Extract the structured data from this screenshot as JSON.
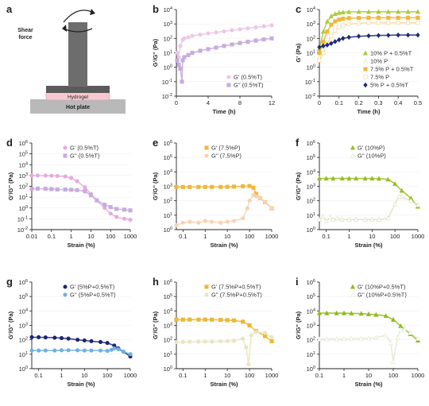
{
  "schematic": {
    "label": "a",
    "shear_force": "Shear\nforce",
    "hydrogel": "Hydrogel",
    "hot_plate": "Hot plate"
  },
  "chart_data": [
    {
      "id": "b",
      "type": "line",
      "xscale": "linear",
      "yscale": "log",
      "xlim": [
        0,
        12
      ],
      "ylim": [
        -2,
        4
      ],
      "xticks": [
        0,
        4,
        8,
        12
      ],
      "yticks": [
        -2,
        -1,
        0,
        1,
        2,
        3,
        4
      ],
      "xlabel": "Time (h)",
      "ylabel": "G'/G'' (Pa)",
      "legend": "bottom-right",
      "series": [
        {
          "name": "G' (0.5%T)",
          "color": "#eec6e6",
          "marker": "circle",
          "x": [
            0.1,
            0.3,
            0.5,
            0.8,
            1,
            1.5,
            2,
            3,
            4,
            5,
            6,
            7,
            8,
            9,
            10,
            11,
            12
          ],
          "y": [
            10,
            5,
            30,
            80,
            100,
            120,
            150,
            180,
            220,
            260,
            310,
            370,
            430,
            500,
            580,
            680,
            800
          ]
        },
        {
          "name": "G'' (0.5%T)",
          "color": "#c6acdd",
          "marker": "square",
          "x": [
            0.1,
            0.3,
            0.5,
            0.7,
            0.8,
            1,
            1.5,
            2,
            3,
            4,
            5,
            6,
            7,
            8,
            9,
            10,
            11,
            12
          ],
          "y": [
            3,
            1.5,
            0.8,
            0.1,
            3,
            5,
            7,
            10,
            14,
            18,
            23,
            30,
            38,
            48,
            58,
            70,
            85,
            100
          ]
        }
      ]
    },
    {
      "id": "c",
      "type": "scatter",
      "xscale": "linear",
      "yscale": "log",
      "xlim": [
        0,
        0.5
      ],
      "ylim": [
        -2,
        4
      ],
      "xticks": [
        0,
        0.1,
        0.2,
        0.3,
        0.4,
        0.5
      ],
      "yticks": [
        -2,
        -1,
        0,
        1,
        2,
        3,
        4
      ],
      "xlabel": "Time (h)",
      "ylabel": "G' (Pa)",
      "legend": "bottom-right",
      "series": [
        {
          "name": "10% P + 0.5%T",
          "color": "#a8cc3a",
          "marker": "triangle",
          "x": [
            0,
            0.02,
            0.04,
            0.06,
            0.08,
            0.1,
            0.12,
            0.15,
            0.2,
            0.25,
            0.3,
            0.35,
            0.4,
            0.45,
            0.5
          ],
          "y": [
            20,
            300,
            1500,
            3500,
            5000,
            6000,
            6500,
            6800,
            7000,
            7000,
            7000,
            7000,
            7000,
            7000,
            7000
          ]
        },
        {
          "name": "10% P",
          "color": "#dfe9b8",
          "marker": "triangle-open",
          "x": [
            0,
            0.02,
            0.04,
            0.06,
            0.08,
            0.1,
            0.12,
            0.15,
            0.2,
            0.25,
            0.3,
            0.35,
            0.4,
            0.45,
            0.5
          ],
          "y": [
            5,
            50,
            300,
            900,
            1500,
            2000,
            2300,
            2500,
            2600,
            2700,
            2700,
            2700,
            2700,
            2700,
            2700
          ]
        },
        {
          "name": "7.5% P + 0.5%T",
          "color": "#f2b63c",
          "marker": "square",
          "x": [
            0,
            0.02,
            0.04,
            0.06,
            0.08,
            0.1,
            0.12,
            0.15,
            0.2,
            0.25,
            0.3,
            0.35,
            0.4,
            0.45,
            0.5
          ],
          "y": [
            10,
            60,
            300,
            900,
            1500,
            2000,
            2300,
            2500,
            2600,
            2700,
            2700,
            2700,
            2700,
            2700,
            2700
          ]
        },
        {
          "name": "7.5% P",
          "color": "#f6d99a",
          "marker": "square-open",
          "x": [
            0,
            0.02,
            0.04,
            0.06,
            0.08,
            0.1,
            0.12,
            0.15,
            0.2,
            0.25,
            0.3,
            0.35,
            0.4,
            0.45,
            0.5
          ],
          "y": [
            3,
            10,
            40,
            150,
            350,
            600,
            800,
            1000,
            1100,
            1200,
            1200,
            1200,
            1200,
            1200,
            1200
          ]
        },
        {
          "name": "5% P + 0.5%T",
          "color": "#1e2a78",
          "marker": "diamond",
          "x": [
            0,
            0.02,
            0.04,
            0.06,
            0.08,
            0.1,
            0.12,
            0.15,
            0.2,
            0.25,
            0.3,
            0.35,
            0.4,
            0.45,
            0.5
          ],
          "y": [
            25,
            30,
            35,
            45,
            60,
            80,
            100,
            120,
            140,
            150,
            160,
            165,
            170,
            170,
            170
          ]
        }
      ]
    },
    {
      "id": "d",
      "type": "line",
      "xscale": "log",
      "yscale": "log",
      "xlim": [
        -2,
        3
      ],
      "ylim": [
        -2,
        6
      ],
      "xticks": [
        -2,
        -1,
        0,
        1,
        2,
        3
      ],
      "xticklabels": [
        "0.01",
        "0.1",
        "1",
        "10",
        "100",
        "1000"
      ],
      "yticks": [
        -2,
        -1,
        0,
        1,
        2,
        3,
        4,
        5,
        6
      ],
      "xlabel": "Strain (%)",
      "ylabel": "G'/G'' (Pa)",
      "legend": "top-right",
      "series": [
        {
          "name": "G' (0.5%T)",
          "color": "#e8a8dc",
          "marker": "circle",
          "x": [
            0.01,
            0.02,
            0.05,
            0.1,
            0.2,
            0.5,
            1,
            2,
            5,
            10,
            20,
            50,
            100,
            200,
            500,
            1000
          ],
          "y": [
            1000,
            1000,
            980,
            950,
            900,
            800,
            600,
            300,
            80,
            20,
            5,
            1,
            0.3,
            0.15,
            0.1,
            0.08
          ]
        },
        {
          "name": "G'' (0.5%T)",
          "color": "#c6acdd",
          "marker": "square",
          "x": [
            0.01,
            0.02,
            0.05,
            0.1,
            0.2,
            0.5,
            1,
            2,
            5,
            10,
            20,
            50,
            100,
            200,
            500,
            1000
          ],
          "y": [
            60,
            60,
            58,
            55,
            52,
            50,
            48,
            45,
            35,
            15,
            5,
            2,
            1.2,
            0.8,
            0.7,
            0.6
          ]
        }
      ]
    },
    {
      "id": "e",
      "type": "line",
      "xscale": "log",
      "yscale": "log",
      "xlim": [
        -1.3,
        3
      ],
      "ylim": [
        0,
        6
      ],
      "xticks": [
        -1,
        0,
        1,
        2,
        3
      ],
      "xticklabels": [
        "0.1",
        "1",
        "10",
        "100",
        "1000"
      ],
      "yticks": [
        0,
        1,
        2,
        3,
        4,
        5,
        6
      ],
      "xlabel": "Strain (%)",
      "ylabel": "G'/G'' (Pa)",
      "legend": "top-right",
      "series": [
        {
          "name": "G' (7.5%P)",
          "color": "#f2b63c",
          "marker": "square",
          "x": [
            0.05,
            0.1,
            0.2,
            0.5,
            1,
            2,
            5,
            10,
            20,
            50,
            100,
            150,
            200,
            300,
            500,
            1000
          ],
          "y": [
            900,
            900,
            900,
            900,
            900,
            900,
            900,
            920,
            950,
            1000,
            1050,
            800,
            300,
            150,
            80,
            30
          ]
        },
        {
          "name": "G'' (7.5%P)",
          "color": "#f8d2b0",
          "marker": "circle",
          "x": [
            0.05,
            0.1,
            0.2,
            0.5,
            1,
            2,
            5,
            10,
            20,
            50,
            80,
            100,
            150,
            200,
            300,
            500,
            1000
          ],
          "y": [
            2,
            3,
            3.5,
            3,
            4,
            3.5,
            3,
            3.5,
            4,
            6,
            30,
            100,
            250,
            200,
            150,
            80,
            30
          ]
        }
      ]
    },
    {
      "id": "f",
      "type": "line",
      "xscale": "log",
      "yscale": "log",
      "xlim": [
        -1.3,
        3
      ],
      "ylim": [
        0,
        6
      ],
      "xticks": [
        -1,
        0,
        1,
        2,
        3
      ],
      "xticklabels": [
        "0.1",
        "1",
        "10",
        "100",
        "1000"
      ],
      "yticks": [
        0,
        1,
        2,
        3,
        4,
        5,
        6
      ],
      "xlabel": "Strain (%)",
      "ylabel": "G'/G'' (Pa)",
      "legend": "top-right",
      "series": [
        {
          "name": "G' (10%P)",
          "color": "#96bf1e",
          "marker": "triangle",
          "x": [
            0.05,
            0.1,
            0.2,
            0.5,
            1,
            2,
            5,
            10,
            20,
            50,
            100,
            200,
            500,
            1000
          ],
          "y": [
            3500,
            3500,
            3500,
            3500,
            3500,
            3500,
            3500,
            3500,
            3400,
            3000,
            1500,
            500,
            150,
            40
          ]
        },
        {
          "name": "G'' (10%P)",
          "color": "#dce5c4",
          "marker": "triangle-open",
          "x": [
            0.05,
            0.07,
            0.1,
            0.15,
            0.2,
            0.3,
            0.5,
            1,
            2,
            5,
            10,
            20,
            50,
            100,
            150,
            200,
            500,
            1000
          ],
          "y": [
            5,
            8,
            4,
            7,
            5,
            6,
            5,
            5,
            5,
            5,
            5,
            5,
            6,
            60,
            200,
            180,
            100,
            50
          ]
        }
      ]
    },
    {
      "id": "g",
      "type": "line",
      "xscale": "log",
      "yscale": "log",
      "xlim": [
        -1.3,
        3
      ],
      "ylim": [
        0,
        6
      ],
      "xticks": [
        -1,
        0,
        1,
        2,
        3
      ],
      "xticklabels": [
        "0.1",
        "1",
        "10",
        "100",
        "1000"
      ],
      "yticks": [
        0,
        1,
        2,
        3,
        4,
        5,
        6
      ],
      "xlabel": "Strain (%)",
      "ylabel": "G'/G'' (Pa)",
      "legend": "top-right",
      "series": [
        {
          "name": "G' (5%P+0.5%T)",
          "color": "#1b2473",
          "marker": "circle",
          "x": [
            0.05,
            0.1,
            0.2,
            0.5,
            1,
            2,
            5,
            10,
            20,
            50,
            100,
            200,
            300,
            500,
            1000
          ],
          "y": [
            150,
            150,
            145,
            140,
            130,
            120,
            100,
            90,
            80,
            70,
            60,
            40,
            25,
            15,
            7
          ]
        },
        {
          "name": "G'' (5%P+0.5%T)",
          "color": "#6fb0e0",
          "marker": "circle",
          "x": [
            0.05,
            0.1,
            0.2,
            0.5,
            1,
            2,
            5,
            10,
            20,
            50,
            100,
            150,
            200,
            300,
            500,
            1000
          ],
          "y": [
            18,
            18,
            18,
            18,
            19,
            19,
            19,
            18,
            18,
            18,
            17,
            20,
            25,
            22,
            15,
            10
          ]
        }
      ]
    },
    {
      "id": "h",
      "type": "line",
      "xscale": "log",
      "yscale": "log",
      "xlim": [
        -1.3,
        3
      ],
      "ylim": [
        0,
        6
      ],
      "xticks": [
        -1,
        0,
        1,
        2,
        3
      ],
      "xticklabels": [
        "0.1",
        "1",
        "10",
        "100",
        "1000"
      ],
      "yticks": [
        0,
        1,
        2,
        3,
        4,
        5,
        6
      ],
      "xlabel": "Strain (%)",
      "ylabel": "G'/G'' (Pa)",
      "legend": "top-right",
      "series": [
        {
          "name": "G' (7.5%P+0.5%T)",
          "color": "#ecb830",
          "marker": "square",
          "x": [
            0.05,
            0.1,
            0.2,
            0.5,
            1,
            2,
            5,
            10,
            20,
            50,
            100,
            200,
            500,
            1000
          ],
          "y": [
            2500,
            2500,
            2500,
            2500,
            2500,
            2500,
            2400,
            2300,
            2200,
            1800,
            1000,
            400,
            180,
            80
          ]
        },
        {
          "name": "G'' (7.5%P+0.5%T)",
          "color": "#e8e5c0",
          "marker": "circle",
          "x": [
            0.05,
            0.1,
            0.2,
            0.5,
            1,
            2,
            5,
            10,
            20,
            50,
            70,
            90,
            120,
            200,
            500,
            1000
          ],
          "y": [
            70,
            70,
            72,
            75,
            75,
            75,
            78,
            80,
            85,
            120,
            30,
            2,
            200,
            350,
            300,
            150
          ]
        }
      ]
    },
    {
      "id": "i",
      "type": "line",
      "xscale": "log",
      "yscale": "log",
      "xlim": [
        -1,
        3
      ],
      "ylim": [
        0,
        6
      ],
      "xticks": [
        -1,
        0,
        1,
        2,
        3
      ],
      "xticklabels": [
        "0.1",
        "1",
        "10",
        "100",
        "1000"
      ],
      "yticks": [
        0,
        1,
        2,
        3,
        4,
        5,
        6
      ],
      "xlabel": "Strain (%)",
      "ylabel": "G'/G'' (Pa)",
      "legend": "top-right",
      "series": [
        {
          "name": "G' (10%P+0.5%T)",
          "color": "#8fbb1a",
          "marker": "triangle",
          "x": [
            0.1,
            0.2,
            0.5,
            1,
            2,
            5,
            10,
            20,
            50,
            100,
            200,
            500,
            1000
          ],
          "y": [
            7000,
            7000,
            7000,
            7000,
            6800,
            6500,
            6000,
            5500,
            4500,
            2500,
            900,
            250,
            90
          ]
        },
        {
          "name": "G'' (10%P+0.5%T)",
          "color": "#e3e9d3",
          "marker": "triangle-open",
          "x": [
            0.1,
            0.2,
            0.5,
            1,
            2,
            5,
            10,
            20,
            50,
            80,
            100,
            150,
            200,
            300,
            500,
            1000
          ],
          "y": [
            110,
            110,
            112,
            115,
            118,
            120,
            125,
            140,
            200,
            60,
            3,
            150,
            500,
            600,
            300,
            120
          ]
        }
      ]
    }
  ]
}
